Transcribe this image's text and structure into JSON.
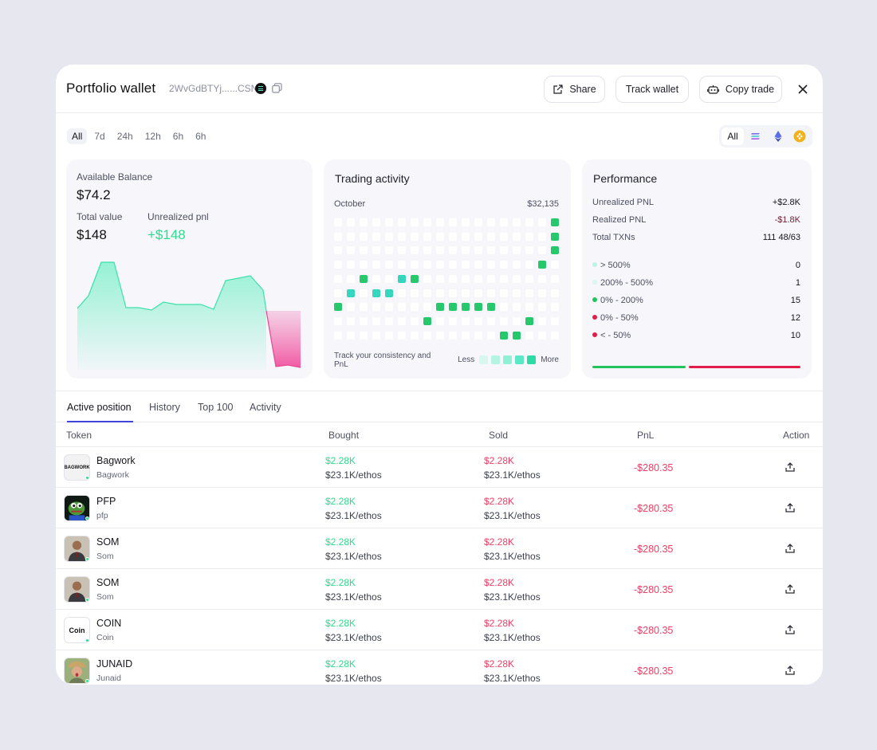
{
  "header": {
    "title": "Portfolio wallet",
    "address": "2WvGdBTYj......CSN",
    "share_label": "Share",
    "track_label": "Track wallet",
    "copy_trade_label": "Copy trade"
  },
  "time_filters": [
    "All",
    "7d",
    "24h",
    "12h",
    "6h",
    "6h"
  ],
  "chain_filter": {
    "all_label": "All",
    "chains": [
      "solana-icon",
      "ethereum-icon",
      "bnb-icon"
    ]
  },
  "balance": {
    "available_label": "Available Balance",
    "available_value": "$74.2",
    "total_label": "Total value",
    "total_value": "$148",
    "pnl_label": "Unrealized pnl",
    "pnl_value": "+$148"
  },
  "trading_activity": {
    "title": "Trading activity",
    "month": "October",
    "total": "$32,135",
    "note": "Track your consistency and PnL",
    "legend_less": "Less",
    "legend_more": "More"
  },
  "performance": {
    "title": "Performance",
    "stats": [
      {
        "label": "Unrealized PNL",
        "value": "+$2.8K",
        "color": "#15161c"
      },
      {
        "label": "Realized PNL",
        "value": "-$1.8K",
        "color": "#6b1f2e"
      },
      {
        "label": "Total TXNs",
        "value": "111 48/63",
        "color": "#15161c"
      }
    ],
    "ranges": [
      {
        "label": "> 500%",
        "value": "0",
        "color": "#bdf3df"
      },
      {
        "label": "200% - 500%",
        "value": "1",
        "color": "#d9f7ec"
      },
      {
        "label": "0% - 200%",
        "value": "15",
        "color": "#22c55e"
      },
      {
        "label": "0% - 50%",
        "value": "12",
        "color": "#e11d48"
      },
      {
        "label": "< - 50%",
        "value": "10",
        "color": "#e11d48"
      }
    ],
    "bar_green_color": "#22c55e",
    "bar_red_color": "#e11d48"
  },
  "tabs": [
    "Active position",
    "History",
    "Top 100",
    "Activity"
  ],
  "table": {
    "headers": {
      "token": "Token",
      "bought": "Bought",
      "sold": "Sold",
      "pnl": "PnL",
      "action": "Action"
    },
    "rows": [
      {
        "name": "Bagwork",
        "symbol": "Bagwork",
        "bought_usd": "$2.28K",
        "bought_amt": "$23.1K/ethos",
        "sold_usd": "$2.28K",
        "sold_amt": "$23.1K/ethos",
        "pnl": "-$280.35",
        "avatar_text": "BAGWORK",
        "avatar_kind": "bagwork"
      },
      {
        "name": "PFP",
        "symbol": "pfp",
        "bought_usd": "$2.28K",
        "bought_amt": "$23.1K/ethos",
        "sold_usd": "$2.28K",
        "sold_amt": "$23.1K/ethos",
        "pnl": "-$280.35",
        "avatar_text": "",
        "avatar_kind": "pfp"
      },
      {
        "name": "SOM",
        "symbol": "Som",
        "bought_usd": "$2.28K",
        "bought_amt": "$23.1K/ethos",
        "sold_usd": "$2.28K",
        "sold_amt": "$23.1K/ethos",
        "pnl": "-$280.35",
        "avatar_text": "",
        "avatar_kind": "person"
      },
      {
        "name": "SOM",
        "symbol": "Som",
        "bought_usd": "$2.28K",
        "bought_amt": "$23.1K/ethos",
        "sold_usd": "$2.28K",
        "sold_amt": "$23.1K/ethos",
        "pnl": "-$280.35",
        "avatar_text": "",
        "avatar_kind": "person"
      },
      {
        "name": "COIN",
        "symbol": "Coin",
        "bought_usd": "$2.28K",
        "bought_amt": "$23.1K/ethos",
        "sold_usd": "$2.28K",
        "sold_amt": "$23.1K/ethos",
        "pnl": "-$280.35",
        "avatar_text": "Coin",
        "avatar_kind": "coin"
      },
      {
        "name": "JUNAID",
        "symbol": "Junaid",
        "bought_usd": "$2.28K",
        "bought_amt": "$23.1K/ethos",
        "sold_usd": "$2.28K",
        "sold_amt": "$23.1K/ethos",
        "pnl": "-$280.35",
        "avatar_text": "",
        "avatar_kind": "hat"
      }
    ]
  }
}
